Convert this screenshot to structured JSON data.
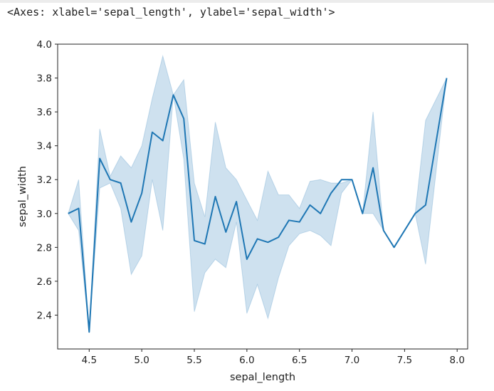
{
  "output_text": "<Axes: xlabel='sepal_length', ylabel='sepal_width'>",
  "colors": {
    "line": "#1f77b4",
    "band": "#1f77b4"
  },
  "chart_data": {
    "type": "line",
    "xlabel": "sepal_length",
    "ylabel": "sepal_width",
    "xlim": [
      4.2,
      8.1
    ],
    "ylim": [
      2.2,
      4.0
    ],
    "x_ticks": [
      4.5,
      5.0,
      5.5,
      6.0,
      6.5,
      7.0,
      7.5,
      8.0
    ],
    "x_tick_labels": [
      "4.5",
      "5.0",
      "5.5",
      "6.0",
      "6.5",
      "7.0",
      "7.5",
      "8.0"
    ],
    "y_ticks": [
      2.4,
      2.6,
      2.8,
      3.0,
      3.2,
      3.4,
      3.6,
      3.8,
      4.0
    ],
    "y_tick_labels": [
      "2.4",
      "2.6",
      "2.8",
      "3.0",
      "3.2",
      "3.4",
      "3.6",
      "3.8",
      "4.0"
    ],
    "grid": false,
    "series": [
      {
        "x": [
          4.3,
          4.4,
          4.5,
          4.6,
          4.7,
          4.8,
          4.9,
          5.0,
          5.1,
          5.2,
          5.3,
          5.4,
          5.5,
          5.6,
          5.7,
          5.8,
          5.9,
          6.0,
          6.1,
          6.2,
          6.3,
          6.4,
          6.5,
          6.6,
          6.7,
          6.8,
          6.9,
          7.0,
          7.1,
          7.2,
          7.3,
          7.4,
          7.6,
          7.7,
          7.9
        ],
        "y": [
          3.0,
          3.03,
          2.3,
          3.325,
          3.2,
          3.18,
          2.95,
          3.12,
          3.48,
          3.43,
          3.7,
          3.56,
          2.84,
          2.82,
          3.1,
          2.89,
          3.07,
          2.73,
          2.85,
          2.83,
          2.86,
          2.96,
          2.95,
          3.05,
          3.0,
          3.12,
          3.2,
          3.2,
          3.0,
          3.27,
          2.9,
          2.8,
          3.0,
          3.05,
          3.8
        ],
        "ci_low": [
          3.0,
          2.9,
          2.3,
          3.15,
          3.18,
          3.03,
          2.64,
          2.75,
          3.2,
          2.9,
          3.7,
          3.32,
          2.42,
          2.65,
          2.73,
          2.68,
          2.95,
          2.41,
          2.58,
          2.38,
          2.62,
          2.81,
          2.88,
          2.9,
          2.87,
          2.81,
          3.12,
          3.2,
          3.0,
          3.0,
          2.9,
          2.8,
          3.0,
          2.7,
          3.8
        ],
        "ci_high": [
          3.0,
          3.2,
          2.3,
          3.5,
          3.22,
          3.34,
          3.27,
          3.4,
          3.68,
          3.93,
          3.7,
          3.79,
          3.18,
          2.98,
          3.54,
          3.27,
          3.2,
          3.08,
          2.96,
          3.25,
          3.11,
          3.11,
          3.03,
          3.19,
          3.2,
          3.18,
          3.18,
          3.2,
          3.0,
          3.6,
          2.9,
          2.8,
          3.0,
          3.55,
          3.8
        ]
      }
    ]
  }
}
